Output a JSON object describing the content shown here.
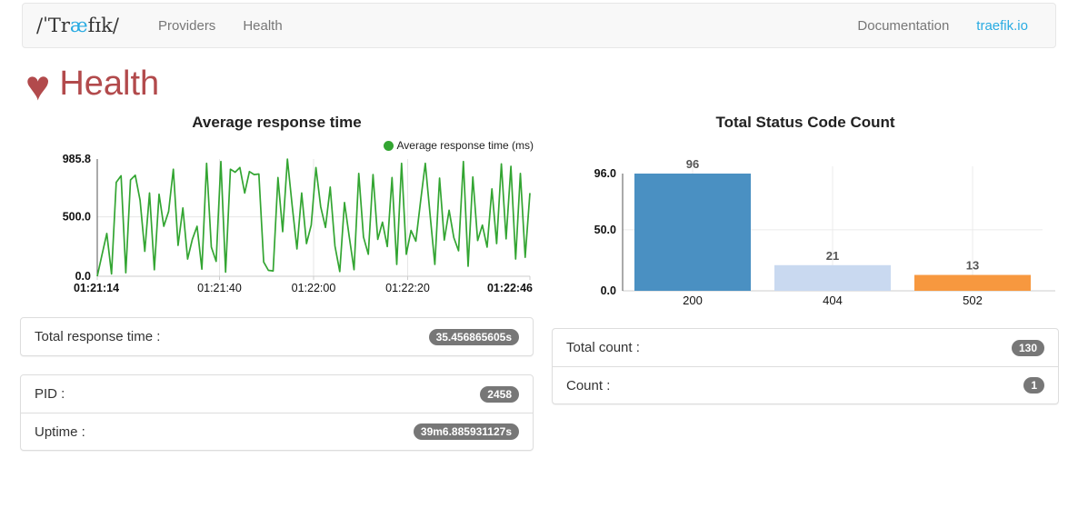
{
  "colors": {
    "accent_cyan": "#29abe2",
    "health_red": "#b24a4c",
    "line_green": "#33a532",
    "bar_blue": "#4a90c2",
    "bar_light_blue": "#c9d9f0",
    "bar_orange": "#f7983f",
    "badge_bg": "#777777",
    "navbar_bg": "#f8f8f8"
  },
  "navbar": {
    "logo": {
      "pre": "/ˈTr",
      "accent": "æ",
      "post": "fɪk/"
    },
    "links": [
      {
        "label": "Providers"
      },
      {
        "label": "Health"
      }
    ],
    "right_links": [
      {
        "label": "Documentation"
      },
      {
        "label": "traefik.io"
      }
    ]
  },
  "page": {
    "heart_icon": "♥",
    "title": "Health"
  },
  "chart_data": [
    {
      "type": "line",
      "title": "Average response time",
      "legend_label": "Average response time (ms)",
      "legend_position": "top-right",
      "grid": true,
      "x_ticks": [
        "01:21:14",
        "01:21:40",
        "01:22:00",
        "01:22:20",
        "01:22:46"
      ],
      "x_tick_pos": [
        0,
        0.2826,
        0.5,
        0.7174,
        1
      ],
      "y_ticks": [
        0,
        500,
        985.8
      ],
      "y_tick_labels": [
        "0.0",
        "500.0",
        "985.8"
      ],
      "ylim": [
        0,
        985.8
      ],
      "xlabel": "",
      "ylabel": "",
      "series": [
        {
          "name": "Average response time (ms)",
          "color": "#33a532",
          "values": [
            0,
            180,
            360,
            20,
            790,
            845,
            30,
            810,
            850,
            640,
            210,
            700,
            55,
            690,
            420,
            545,
            900,
            260,
            575,
            145,
            310,
            420,
            60,
            950,
            245,
            125,
            965,
            35,
            900,
            875,
            915,
            700,
            880,
            855,
            860,
            120,
            50,
            45,
            830,
            375,
            985,
            590,
            230,
            700,
            275,
            430,
            915,
            585,
            410,
            750,
            255,
            40,
            620,
            335,
            55,
            865,
            330,
            185,
            855,
            310,
            455,
            250,
            830,
            100,
            950,
            185,
            385,
            295,
            630,
            950,
            515,
            100,
            825,
            305,
            555,
            325,
            215,
            965,
            85,
            835,
            300,
            430,
            245,
            735,
            275,
            945,
            315,
            925,
            145,
            865,
            160,
            700
          ]
        }
      ]
    },
    {
      "type": "bar",
      "title": "Total Status Code Count",
      "grid": true,
      "categories": [
        "200",
        "404",
        "502"
      ],
      "values": [
        96,
        21,
        13
      ],
      "bar_colors": [
        "#4a90c2",
        "#c9d9f0",
        "#f7983f"
      ],
      "value_labels": [
        "96",
        "21",
        "13"
      ],
      "y_ticks": [
        0,
        50,
        96
      ],
      "y_tick_labels": [
        "0.0",
        "50.0",
        "96.0"
      ],
      "ylim": [
        0,
        96
      ],
      "xlabel": "",
      "ylabel": ""
    }
  ],
  "panels": {
    "left": [
      {
        "rows": [
          {
            "label": "Total response time :",
            "badge": "35.456865605s"
          }
        ]
      },
      {
        "rows": [
          {
            "label": "PID :",
            "badge": "2458"
          },
          {
            "label": "Uptime :",
            "badge": "39m6.885931127s"
          }
        ]
      }
    ],
    "right": [
      {
        "rows": [
          {
            "label": "Total count :",
            "badge": "130"
          },
          {
            "label": "Count :",
            "badge": "1"
          }
        ]
      }
    ]
  }
}
